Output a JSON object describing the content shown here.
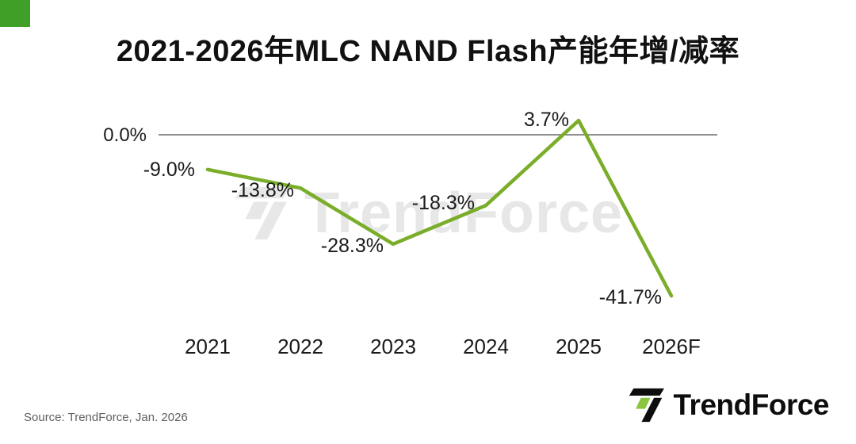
{
  "title": "2021-2026年MLC NAND Flash产能年增/减率",
  "watermark_text": "TrendForce",
  "footer": {
    "source": "Source: TrendForce, Jan. 2026",
    "brand": "TrendForce"
  },
  "colors": {
    "line_green": "#79ad2a",
    "logo_green": "#8bc53f",
    "corner_green": "#3f9f27",
    "watermark_gray": "#e7e7e7",
    "axis_line": "#4d4d4d",
    "label_text": "#1a1a1a"
  },
  "chart_data": {
    "type": "line",
    "title": "2021-2026年MLC NAND Flash产能年增/减率",
    "categories": [
      "2021",
      "2022",
      "2023",
      "2024",
      "2025",
      "2026F"
    ],
    "values": [
      -9.0,
      -13.8,
      -28.3,
      -18.3,
      3.7,
      -41.7
    ],
    "labels": [
      "-9.0%",
      "-13.8%",
      "-28.3%",
      "-18.3%",
      "3.7%",
      "-41.7%"
    ],
    "zero_label": "0.0%",
    "ylim": [
      -45,
      8
    ],
    "grid": false,
    "legend": "none",
    "line_color": "#79ad2a"
  }
}
